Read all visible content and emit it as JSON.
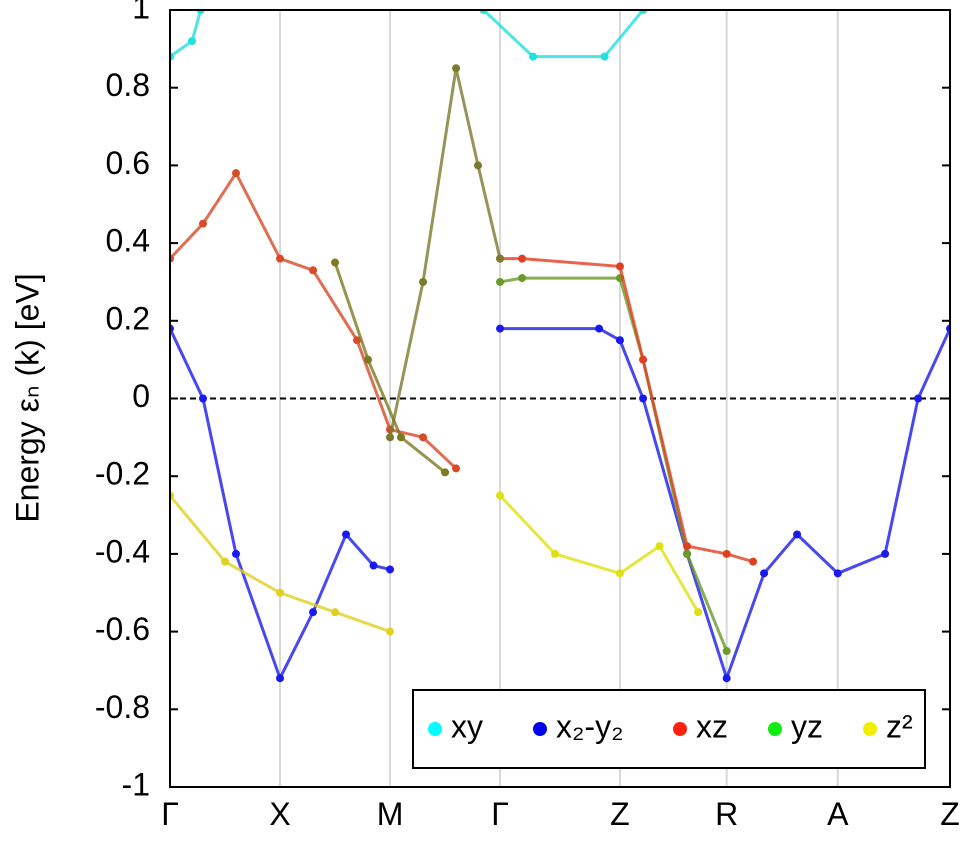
{
  "chart_data": {
    "type": "band",
    "y_label": "Energy εₙ (k) [eV]",
    "xlim": [
      0,
      7.09
    ],
    "ylim": [
      -1,
      1
    ],
    "xticks": [
      {
        "value": 0,
        "label": "Γ"
      },
      {
        "value": 1,
        "label": "X"
      },
      {
        "value": 2,
        "label": "M"
      },
      {
        "value": 3,
        "label": "Γ"
      },
      {
        "value": 4.09,
        "label": "Z"
      },
      {
        "value": 5.06,
        "label": "R"
      },
      {
        "value": 6.07,
        "label": "A"
      },
      {
        "value": 7.09,
        "label": "Z"
      }
    ],
    "yticks": [
      1,
      0.8,
      0.6,
      0.4,
      0.2,
      0,
      -0.2,
      -0.4,
      -0.6,
      -0.8,
      -1
    ],
    "grid": true,
    "fermi_level": 0,
    "legend_loc": "lower right",
    "legend": [
      {
        "name": "xy",
        "color": "#00ffff"
      },
      {
        "name": "x₂-y₂",
        "color": "#0000ee"
      },
      {
        "name": "xz",
        "color": "#ff2010"
      },
      {
        "name": "yz",
        "color": "#10ee10"
      },
      {
        "name": "z²",
        "color": "#f0f000"
      }
    ],
    "series": [
      {
        "color": "#20e0e0",
        "x": [
          0,
          0.2,
          0.28
        ],
        "values": [
          0.88,
          0.92,
          1.0
        ]
      },
      {
        "color": "#20e0e0",
        "x": [
          2.85,
          3.3,
          3.95,
          4.3
        ],
        "values": [
          1.0,
          0.88,
          0.88,
          1.0
        ]
      },
      {
        "color": "#1a1aee",
        "x": [
          0,
          0.3,
          0.6,
          1.0,
          1.3,
          1.6,
          1.85,
          2.0
        ],
        "values": [
          0.18,
          0.0,
          -0.4,
          -0.72,
          -0.55,
          -0.35,
          -0.43,
          -0.44
        ]
      },
      {
        "color": "#1a1aee",
        "x": [
          3.0,
          3.9,
          4.09,
          4.3,
          4.7,
          5.06,
          5.4,
          5.7,
          6.07,
          6.5,
          6.8,
          7.09
        ],
        "values": [
          0.18,
          0.18,
          0.15,
          0.0,
          -0.4,
          -0.72,
          -0.45,
          -0.35,
          -0.45,
          -0.4,
          0.0,
          0.18
        ]
      },
      {
        "color": "#d84a28",
        "x": [
          0,
          0.3,
          0.6,
          1.0,
          1.3,
          1.7,
          2.0,
          2.3,
          2.6
        ],
        "values": [
          0.36,
          0.45,
          0.58,
          0.36,
          0.33,
          0.15,
          -0.08,
          -0.1,
          -0.18
        ]
      },
      {
        "color": "#6a9a28",
        "x": [
          3.0,
          3.2,
          4.09,
          4.3,
          4.7,
          5.06
        ],
        "values": [
          0.3,
          0.31,
          0.31,
          0.1,
          -0.4,
          -0.65
        ]
      },
      {
        "color": "#e04020",
        "x": [
          3.0,
          3.2,
          4.09,
          4.3,
          4.7,
          5.06,
          5.3
        ],
        "values": [
          0.36,
          0.36,
          0.34,
          0.1,
          -0.38,
          -0.4,
          -0.42
        ]
      },
      {
        "color": "#e0e010",
        "x": [
          3.0,
          3.5,
          4.09,
          4.45,
          4.8
        ],
        "values": [
          -0.25,
          -0.4,
          -0.45,
          -0.38,
          -0.55
        ]
      },
      {
        "color": "#e0d020",
        "x": [
          0,
          0.5,
          1.0,
          1.5,
          2.0
        ],
        "values": [
          -0.25,
          -0.42,
          -0.5,
          -0.55,
          -0.6
        ]
      },
      {
        "color": "#7a7a30",
        "x": [
          2.0,
          2.3,
          2.6,
          2.8,
          3.0
        ],
        "values": [
          -0.1,
          0.3,
          0.85,
          0.6,
          0.36
        ]
      },
      {
        "color": "#7a7a20",
        "x": [
          1.5,
          1.8,
          2.1,
          2.5
        ],
        "values": [
          0.35,
          0.1,
          -0.1,
          -0.19
        ]
      }
    ]
  }
}
